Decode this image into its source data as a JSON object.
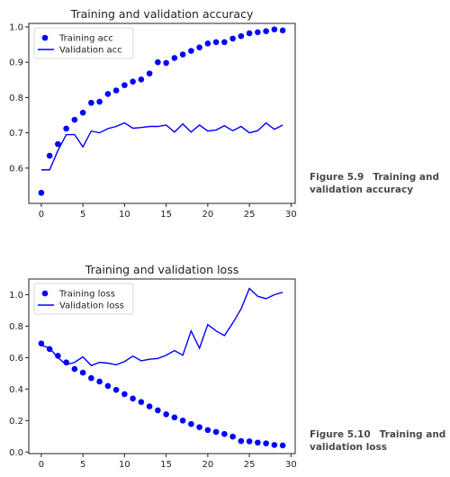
{
  "chart_data": [
    {
      "type": "line",
      "title": "Training and validation accuracy",
      "xlabel": "",
      "ylabel": "",
      "xlim": [
        -1.5,
        30.5
      ],
      "ylim": [
        0.5,
        1.01
      ],
      "xticks": [
        0,
        5,
        10,
        15,
        20,
        25,
        30
      ],
      "yticks": [
        0.6,
        0.7,
        0.8,
        0.9,
        1.0
      ],
      "xtick_labels": [
        "0",
        "5",
        "10",
        "15",
        "20",
        "25",
        "30"
      ],
      "ytick_labels": [
        "0.6",
        "0.7",
        "0.8",
        "0.9",
        "1.0"
      ],
      "legend": "top-left",
      "grid": false,
      "x": [
        0,
        1,
        2,
        3,
        4,
        5,
        6,
        7,
        8,
        9,
        10,
        11,
        12,
        13,
        14,
        15,
        16,
        17,
        18,
        19,
        20,
        21,
        22,
        23,
        24,
        25,
        26,
        27,
        28,
        29
      ],
      "series": [
        {
          "name": "Training acc",
          "style": "dots",
          "color": "#0000ff",
          "values": [
            0.53,
            0.635,
            0.668,
            0.712,
            0.737,
            0.757,
            0.785,
            0.788,
            0.81,
            0.82,
            0.835,
            0.845,
            0.851,
            0.868,
            0.9,
            0.898,
            0.912,
            0.922,
            0.932,
            0.942,
            0.953,
            0.957,
            0.957,
            0.967,
            0.974,
            0.982,
            0.985,
            0.988,
            0.993,
            0.99
          ]
        },
        {
          "name": "Validation acc",
          "style": "line",
          "color": "#0000ff",
          "values": [
            0.595,
            0.595,
            0.65,
            0.695,
            0.695,
            0.66,
            0.705,
            0.7,
            0.712,
            0.718,
            0.728,
            0.713,
            0.715,
            0.718,
            0.718,
            0.722,
            0.702,
            0.725,
            0.702,
            0.722,
            0.705,
            0.708,
            0.72,
            0.706,
            0.718,
            0.7,
            0.706,
            0.728,
            0.71,
            0.722
          ]
        }
      ]
    },
    {
      "type": "line",
      "title": "Training and validation loss",
      "xlabel": "",
      "ylabel": "",
      "xlim": [
        -1.5,
        30.5
      ],
      "ylim": [
        -0.01,
        1.1
      ],
      "xticks": [
        0,
        5,
        10,
        15,
        20,
        25,
        30
      ],
      "yticks": [
        0.0,
        0.2,
        0.4,
        0.6,
        0.8,
        1.0
      ],
      "xtick_labels": [
        "0",
        "5",
        "10",
        "15",
        "20",
        "25",
        "30"
      ],
      "ytick_labels": [
        "0.0",
        "0.2",
        "0.4",
        "0.6",
        "0.8",
        "1.0"
      ],
      "legend": "top-left",
      "grid": false,
      "x": [
        0,
        1,
        2,
        3,
        4,
        5,
        6,
        7,
        8,
        9,
        10,
        11,
        12,
        13,
        14,
        15,
        16,
        17,
        18,
        19,
        20,
        21,
        22,
        23,
        24,
        25,
        26,
        27,
        28,
        29
      ],
      "series": [
        {
          "name": "Training loss",
          "style": "dots",
          "color": "#0000ff",
          "values": [
            0.69,
            0.655,
            0.612,
            0.57,
            0.528,
            0.505,
            0.47,
            0.448,
            0.42,
            0.395,
            0.368,
            0.34,
            0.318,
            0.29,
            0.265,
            0.24,
            0.22,
            0.2,
            0.178,
            0.158,
            0.14,
            0.128,
            0.115,
            0.098,
            0.07,
            0.068,
            0.06,
            0.055,
            0.045,
            0.042
          ]
        },
        {
          "name": "Validation loss",
          "style": "line",
          "color": "#0000ff",
          "values": [
            0.68,
            0.66,
            0.6,
            0.555,
            0.57,
            0.605,
            0.55,
            0.57,
            0.565,
            0.555,
            0.575,
            0.61,
            0.58,
            0.59,
            0.595,
            0.615,
            0.645,
            0.615,
            0.77,
            0.66,
            0.81,
            0.77,
            0.74,
            0.82,
            0.91,
            1.04,
            0.99,
            0.975,
            1.0,
            1.015
          ]
        }
      ]
    }
  ],
  "captions": [
    {
      "number": "Figure 5.9",
      "text": "Training and validation accuracy"
    },
    {
      "number": "Figure 5.10",
      "text": "Training and validation loss"
    }
  ]
}
